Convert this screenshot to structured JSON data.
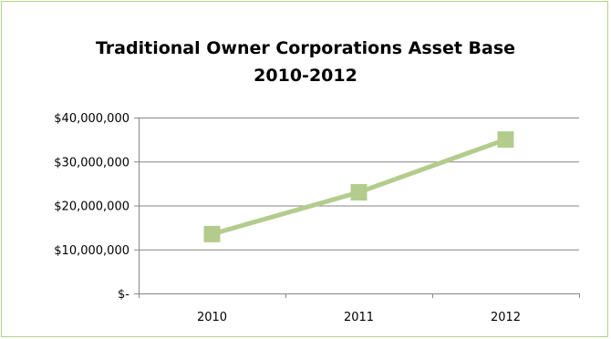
{
  "chart_data": {
    "type": "line",
    "title_lines": [
      "Traditional Owner Corporations Asset Base",
      "2010-2012"
    ],
    "categories": [
      "2010",
      "2011",
      "2012"
    ],
    "series": [
      {
        "values": [
          13500000,
          23000000,
          35000000
        ]
      }
    ],
    "ylim": [
      0,
      40000000
    ],
    "y_ticks": [
      {
        "value": 0,
        "label": "$-"
      },
      {
        "value": 10000000,
        "label": "$10,000,000"
      },
      {
        "value": 20000000,
        "label": "$20,000,000"
      },
      {
        "value": 30000000,
        "label": "$30,000,000"
      },
      {
        "value": 40000000,
        "label": "$40,000,000"
      }
    ],
    "grid": true,
    "legend": "none",
    "colors": {
      "line": "#b3cc8d",
      "marker": "#b3cc8d",
      "gridline": "#868686",
      "border": "#b7cf8a"
    }
  }
}
